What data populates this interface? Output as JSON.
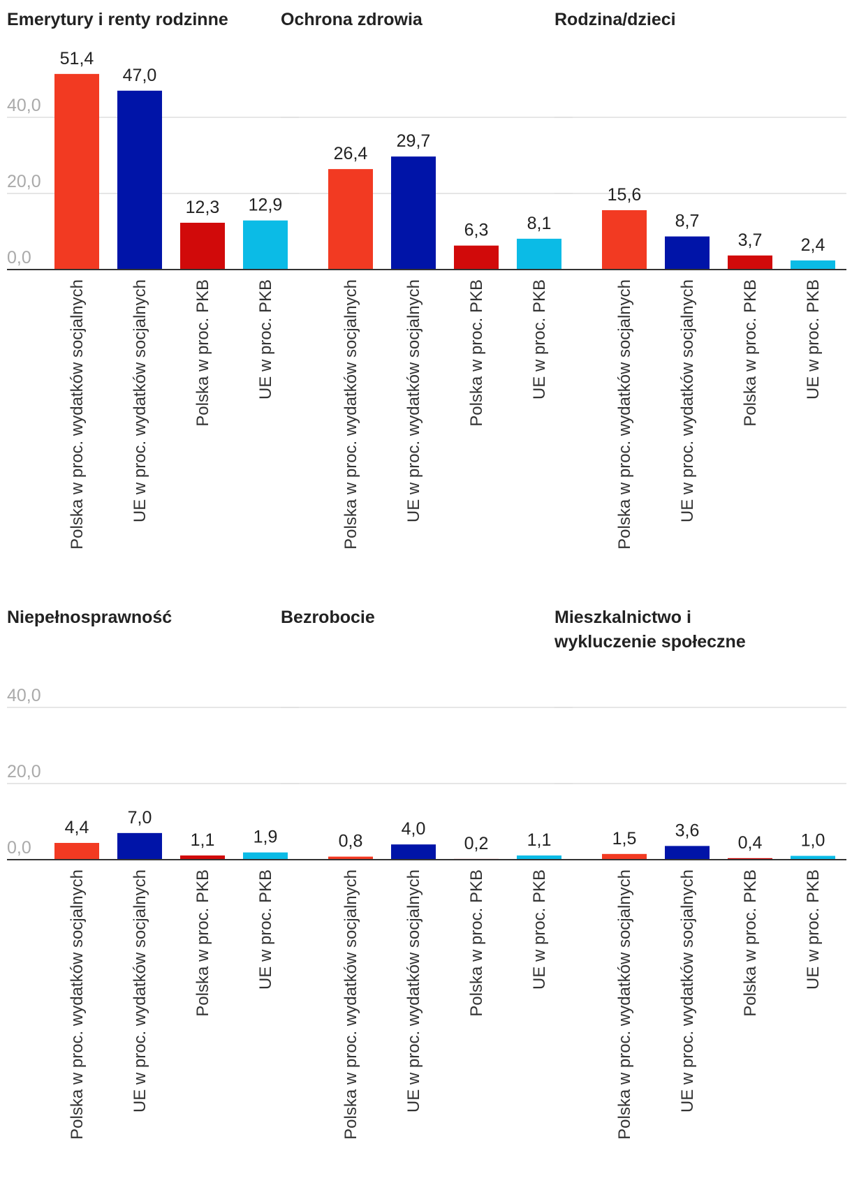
{
  "colors": {
    "polska_social": "#f23a22",
    "ue_social": "#0014a8",
    "polska_pkb": "#d10a0a",
    "ue_pkb": "#0bbbe6",
    "grid": "#dddddd",
    "axis": "#333333",
    "tick_text": "#aaaaaa"
  },
  "chart_data": [
    {
      "type": "bar",
      "title": [
        "Emerytury i renty rodzinne"
      ],
      "categories": [
        "Polska w proc. wydatków socjalnych",
        "UE w proc. wydatków socjalnych",
        "Polska w proc. PKB",
        "UE w proc. PKB"
      ],
      "values": [
        51.4,
        47.0,
        12.3,
        12.9
      ],
      "value_labels": [
        "51,4",
        "47,0",
        "12,3",
        "12,9"
      ],
      "ylim": [
        0,
        40
      ],
      "y_ticks": [
        "0,0",
        "20,0",
        "40,0"
      ],
      "show_y_tick_labels": true
    },
    {
      "type": "bar",
      "title": [
        "Ochrona zdrowia"
      ],
      "categories": [
        "Polska w proc. wydatków socjalnych",
        "UE w proc. wydatków socjalnych",
        "Polska w proc. PKB",
        "UE w proc. PKB"
      ],
      "values": [
        26.4,
        29.7,
        6.3,
        8.1
      ],
      "value_labels": [
        "26,4",
        "29,7",
        "6,3",
        "8,1"
      ],
      "ylim": [
        0,
        40
      ],
      "y_ticks": [
        "0,0",
        "20,0",
        "40,0"
      ],
      "show_y_tick_labels": false
    },
    {
      "type": "bar",
      "title": [
        "Rodzina/dzieci"
      ],
      "categories": [
        "Polska w proc. wydatków socjalnych",
        "UE w proc. wydatków socjalnych",
        "Polska w proc. PKB",
        "UE w proc. PKB"
      ],
      "values": [
        15.6,
        8.7,
        3.7,
        2.4
      ],
      "value_labels": [
        "15,6",
        "8,7",
        "3,7",
        "2,4"
      ],
      "ylim": [
        0,
        40
      ],
      "y_ticks": [
        "0,0",
        "20,0",
        "40,0"
      ],
      "show_y_tick_labels": false
    },
    {
      "type": "bar",
      "title": [
        "Niepełnosprawność"
      ],
      "categories": [
        "Polska w proc. wydatków socjalnych",
        "UE w proc. wydatków socjalnych",
        "Polska w proc. PKB",
        "UE w proc. PKB"
      ],
      "values": [
        4.4,
        7.0,
        1.1,
        1.9
      ],
      "value_labels": [
        "4,4",
        "7,0",
        "1,1",
        "1,9"
      ],
      "ylim": [
        0,
        40
      ],
      "y_ticks": [
        "0,0",
        "20,0",
        "40,0"
      ],
      "show_y_tick_labels": true
    },
    {
      "type": "bar",
      "title": [
        "Bezrobocie"
      ],
      "categories": [
        "Polska w proc. wydatków socjalnych",
        "UE w proc. wydatków socjalnych",
        "Polska w proc. PKB",
        "UE w proc. PKB"
      ],
      "values": [
        0.8,
        4.0,
        0.2,
        1.1
      ],
      "value_labels": [
        "0,8",
        "4,0",
        "0,2",
        "1,1"
      ],
      "ylim": [
        0,
        40
      ],
      "y_ticks": [
        "0,0",
        "20,0",
        "40,0"
      ],
      "show_y_tick_labels": false
    },
    {
      "type": "bar",
      "title": [
        "Mieszkalnictwo i",
        "wykluczenie społeczne"
      ],
      "categories": [
        "Polska w proc. wydatków socjalnych",
        "UE w proc. wydatków socjalnych",
        "Polska w proc. PKB",
        "UE w proc. PKB"
      ],
      "values": [
        1.5,
        3.6,
        0.4,
        1.0
      ],
      "value_labels": [
        "1,5",
        "3,6",
        "0,4",
        "1,0"
      ],
      "ylim": [
        0,
        40
      ],
      "y_ticks": [
        "0,0",
        "20,0",
        "40,0"
      ],
      "show_y_tick_labels": false
    }
  ]
}
